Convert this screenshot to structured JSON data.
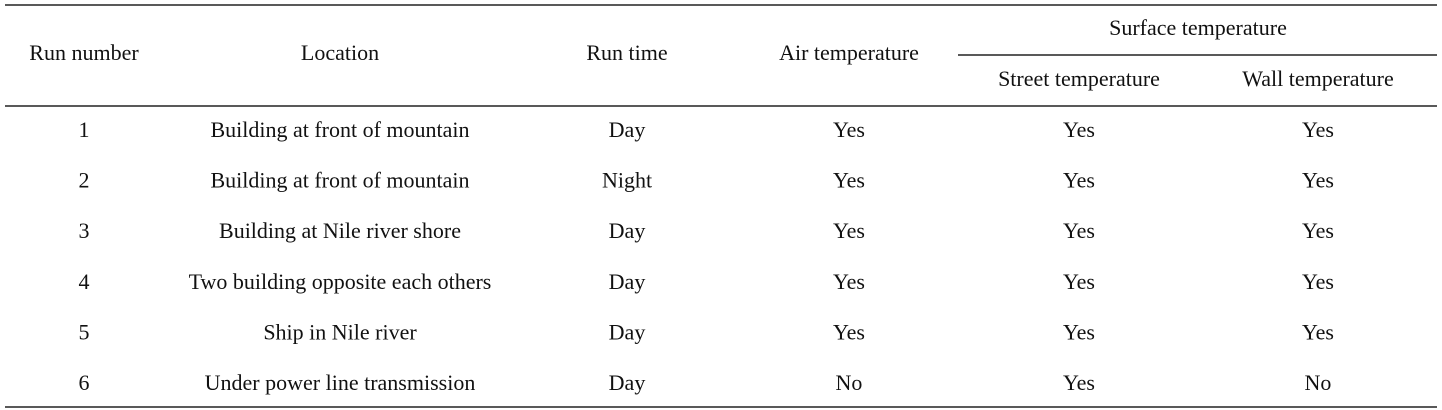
{
  "table": {
    "headers": [
      "Run number",
      "Location",
      "Run time",
      "Air temperature"
    ],
    "group_header": "Surface temperature",
    "subheaders": [
      "Street temperature",
      "Wall temperature"
    ],
    "rows": [
      [
        1,
        "Building at front of mountain",
        "Day",
        "Yes",
        "Yes",
        "Yes"
      ],
      [
        2,
        "Building at front of mountain",
        "Night",
        "Yes",
        "Yes",
        "Yes"
      ],
      [
        3,
        "Building at Nile river shore",
        "Day",
        "Yes",
        "Yes",
        "Yes"
      ],
      [
        4,
        "Two building opposite each others",
        "Day",
        "Yes",
        "Yes",
        "Yes"
      ],
      [
        5,
        "Ship in Nile river",
        "Day",
        "Yes",
        "Yes",
        "Yes"
      ],
      [
        6,
        "Under power line transmission",
        "Day",
        "No",
        "Yes",
        "No"
      ]
    ]
  }
}
